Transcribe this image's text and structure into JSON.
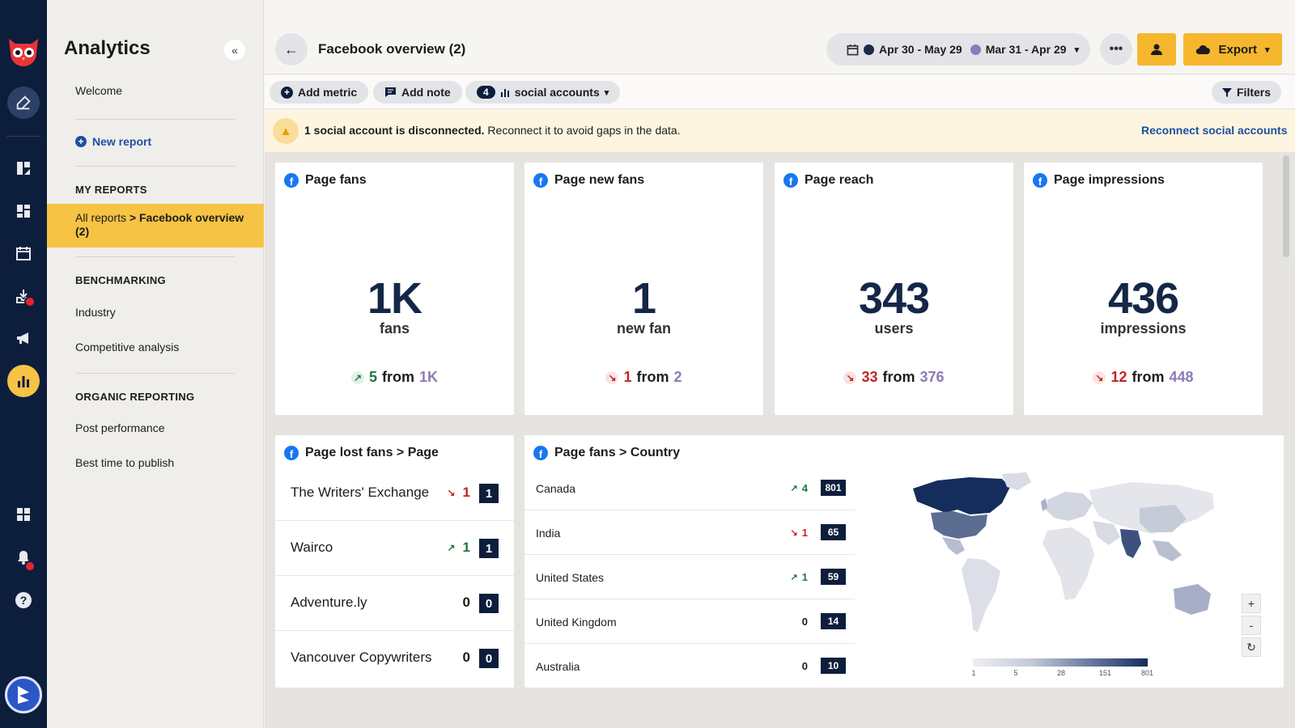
{
  "app": {
    "title": "Analytics",
    "collapse_icon": "double-chevron-left-icon"
  },
  "sidebar": {
    "welcome": "Welcome",
    "new_report": "New report",
    "my_reports_heading": "MY REPORTS",
    "selected_prefix": "All reports",
    "selected_sep": " > ",
    "selected_name": "Facebook overview (2)",
    "benchmarking_heading": "BENCHMARKING",
    "industry": "Industry",
    "competitive": "Competitive analysis",
    "organic_heading": "ORGANIC REPORTING",
    "post_performance": "Post performance",
    "best_time": "Best time to publish"
  },
  "header": {
    "title": "Facebook overview (2)",
    "date_current": "Apr 30 - May 29",
    "date_compare": "Mar 31 - Apr 29",
    "date_current_color": "#1c2a48",
    "date_compare_color": "#8e7bb6",
    "more": "•••",
    "export": "Export"
  },
  "toolbar": {
    "add_metric": "Add metric",
    "add_note": "Add note",
    "accounts_count": "4",
    "accounts_label": "social accounts",
    "filters": "Filters"
  },
  "banner": {
    "bold": "1 social account is disconnected.",
    "text": " Reconnect it to avoid gaps in the data.",
    "link": "Reconnect social accounts"
  },
  "metrics": [
    {
      "title": "Page fans",
      "value": "1K",
      "unit": "fans",
      "dir": "up",
      "change": "5",
      "from": "from",
      "prev": "1K"
    },
    {
      "title": "Page new fans",
      "value": "1",
      "unit": "new fan",
      "dir": "dn",
      "change": "1",
      "from": "from",
      "prev": "2"
    },
    {
      "title": "Page reach",
      "value": "343",
      "unit": "users",
      "dir": "dn",
      "change": "33",
      "from": "from",
      "prev": "376"
    },
    {
      "title": "Page impressions",
      "value": "436",
      "unit": "impressions",
      "dir": "dn",
      "change": "12",
      "from": "from",
      "prev": "448"
    }
  ],
  "lost_fans": {
    "title": "Page lost fans > Page",
    "rows": [
      {
        "name": "The Writers' Exchange",
        "dir": "dn",
        "change": "1",
        "value": "1"
      },
      {
        "name": "Wairco",
        "dir": "up",
        "change": "1",
        "value": "1"
      },
      {
        "name": "Adventure.ly",
        "dir": "none",
        "change": "0",
        "value": "0"
      },
      {
        "name": "Vancouver Copywriters",
        "dir": "none",
        "change": "0",
        "value": "0"
      }
    ]
  },
  "country": {
    "title": "Page fans > Country",
    "rows": [
      {
        "name": "Canada",
        "dir": "up",
        "change": "4",
        "value": "801"
      },
      {
        "name": "India",
        "dir": "dn",
        "change": "1",
        "value": "65"
      },
      {
        "name": "United States",
        "dir": "up",
        "change": "1",
        "value": "59"
      },
      {
        "name": "United Kingdom",
        "dir": "none",
        "change": "0",
        "value": "14"
      },
      {
        "name": "Australia",
        "dir": "none",
        "change": "0",
        "value": "10"
      }
    ],
    "legend_ticks": [
      "1",
      "5",
      "28",
      "151",
      "801"
    ],
    "zoom_in": "+",
    "zoom_out": "-",
    "reset": "↻"
  }
}
